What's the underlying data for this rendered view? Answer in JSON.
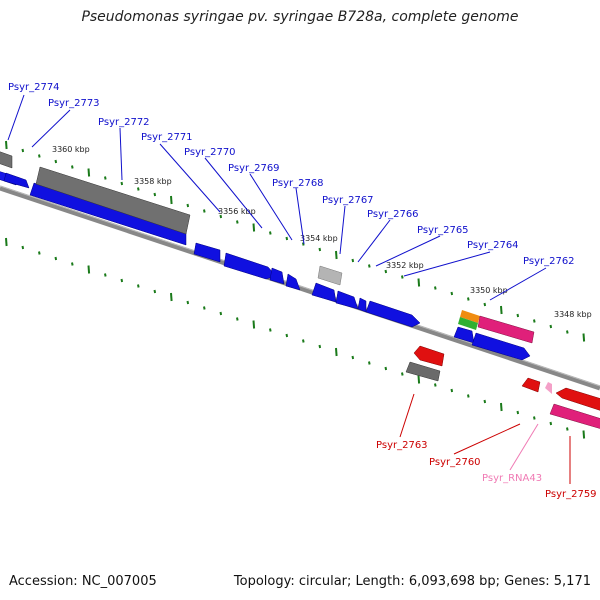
{
  "title": "Pseudomonas syringae pv. syringae B728a, complete genome",
  "footer": {
    "accession": "Accession: NC_007005",
    "summary": "Topology: circular; Length: 6,093,698 bp; Genes: 5,171"
  },
  "colors": {
    "forward_gene": "#1010e0",
    "reverse_gene": "#e01010",
    "gray_gene": "#707070",
    "light_gray_gene": "#b4b4b4",
    "pink_gene": "#e0207a",
    "orange_gene": "#f08c10",
    "green_gene": "#30b030",
    "backbone": "#888888",
    "ticks": "#1a7a1a",
    "forward_label": "#1010cc",
    "reverse_label": "#cc0000",
    "rna_label": "#f07ab4"
  },
  "scale_labels": [
    "3360 kbp",
    "3358 kbp",
    "3356 kbp",
    "3354 kbp",
    "3352 kbp",
    "3350 kbp",
    "3348 kbp"
  ],
  "gene_labels": {
    "g2774": "Psyr_2774",
    "g2773": "Psyr_2773",
    "g2772": "Psyr_2772",
    "g2771": "Psyr_2771",
    "g2770": "Psyr_2770",
    "g2769": "Psyr_2769",
    "g2768": "Psyr_2768",
    "g2767": "Psyr_2767",
    "g2766": "Psyr_2766",
    "g2765": "Psyr_2765",
    "g2764": "Psyr_2764",
    "g2762": "Psyr_2762",
    "g2763": "Psyr_2763",
    "g2760": "Psyr_2760",
    "rna43": "Psyr_RNA43",
    "g2759": "Psyr_2759"
  }
}
